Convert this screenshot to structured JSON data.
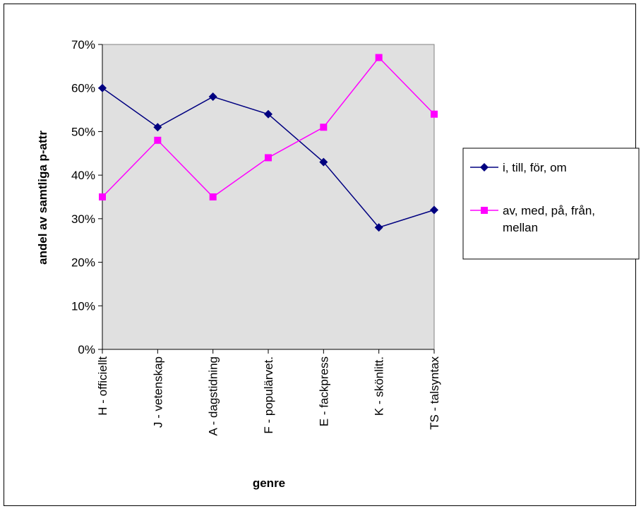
{
  "chart_data": {
    "type": "line",
    "title": "",
    "xlabel": "genre",
    "ylabel": "andel av samtliga p-attr",
    "categories": [
      "H - officiellt",
      "J - vetenskap",
      "A - dagstidning",
      "F - populärvet.",
      "E - fackpress",
      "K - skönlitt.",
      "TS - talsyntax"
    ],
    "ylim": [
      0,
      0.7
    ],
    "yticks": [
      0,
      0.1,
      0.2,
      0.3,
      0.4,
      0.5,
      0.6,
      0.7
    ],
    "ytick_labels": [
      "0%",
      "10%",
      "20%",
      "30%",
      "40%",
      "50%",
      "60%",
      "70%"
    ],
    "grid": false,
    "plot_background": "#e0e0e0",
    "legend_position": "right",
    "series": [
      {
        "name": "i, till, för, om",
        "color": "#000080",
        "marker": "diamond",
        "values": [
          0.6,
          0.51,
          0.58,
          0.54,
          0.43,
          0.28,
          0.32
        ]
      },
      {
        "name": "av, med, på, från, mellan",
        "color": "#ff00ff",
        "marker": "square",
        "values": [
          0.35,
          0.48,
          0.35,
          0.44,
          0.51,
          0.67,
          0.54
        ]
      }
    ]
  }
}
